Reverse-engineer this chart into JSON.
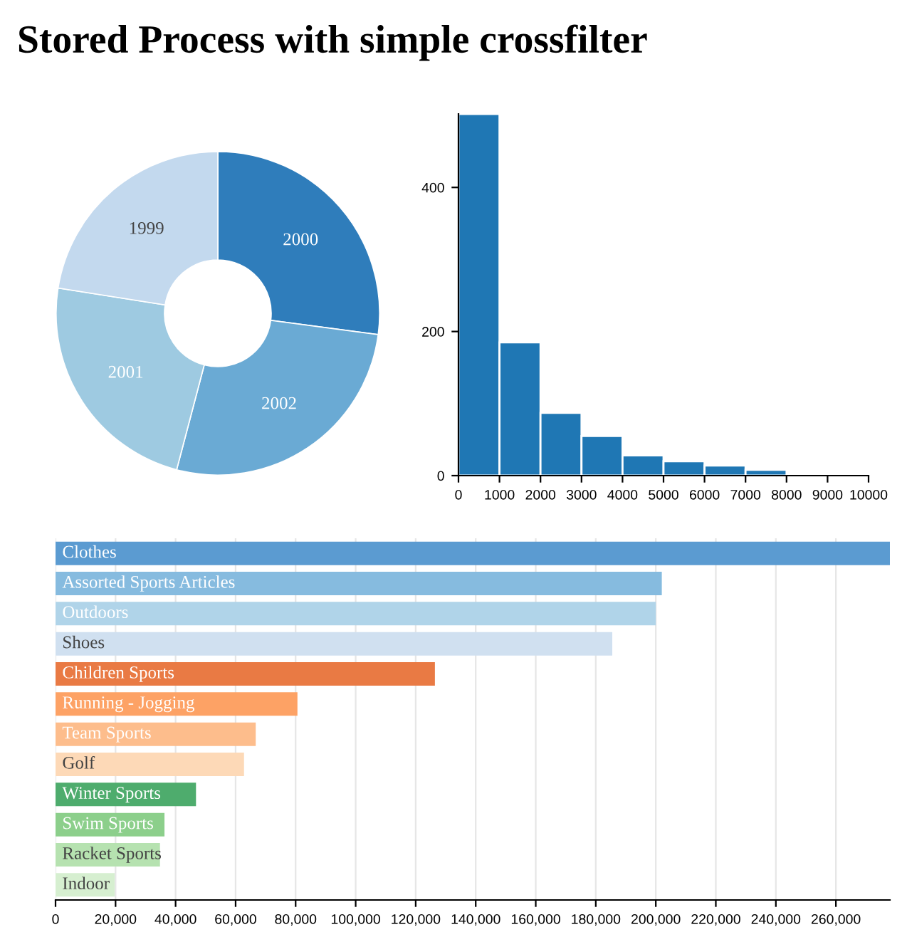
{
  "chart_data": [
    {
      "type": "donut",
      "title": "Stored Process with simple crossfilter",
      "categories": [
        "2000",
        "2002",
        "2001",
        "1999"
      ],
      "values": [
        27.1,
        27.0,
        23.4,
        22.5
      ],
      "colors": [
        "#2f7dbb",
        "#6aaad4",
        "#9ecae1",
        "#c3d9ee"
      ]
    },
    {
      "type": "histogram",
      "bins": [
        0,
        1000,
        2000,
        3000,
        4000,
        5000,
        6000,
        7000,
        8000,
        9000,
        10000
      ],
      "values": [
        502,
        185,
        87,
        55,
        28,
        20,
        14,
        8,
        0,
        0
      ],
      "color": "#1f77b4",
      "xlim": [
        0,
        10000
      ],
      "xticks": [
        0,
        1000,
        2000,
        3000,
        4000,
        5000,
        6000,
        7000,
        8000,
        9000,
        10000
      ],
      "ylim": [
        0,
        502
      ],
      "yticks": [
        0,
        200,
        400
      ],
      "grid": false
    },
    {
      "type": "bar",
      "orientation": "horizontal",
      "categories": [
        "Clothes",
        "Assorted Sports Articles",
        "Outdoors",
        "Shoes",
        "Children Sports",
        "Running - Jogging",
        "Team Sports",
        "Golf",
        "Winter Sports",
        "Swim Sports",
        "Racket Sports",
        "Indoor"
      ],
      "values": [
        278000,
        202000,
        200000,
        185500,
        126400,
        80600,
        66700,
        62800,
        46800,
        36300,
        34800,
        19700
      ],
      "colors": [
        "#5b9bd1",
        "#86bbdf",
        "#b0d4e9",
        "#d0e0f0",
        "#e97a44",
        "#fda265",
        "#fdbd8c",
        "#fdd9b7",
        "#4eac6d",
        "#8ccf8b",
        "#b6e2b0",
        "#d6efd0"
      ],
      "xlim": [
        0,
        278000
      ],
      "xticks": [
        0,
        {
          "value": 20000,
          "label": "20,000"
        },
        {
          "value": 40000,
          "label": "40,000"
        },
        {
          "value": 60000,
          "label": "60,000"
        },
        {
          "value": 80000,
          "label": "80,000"
        },
        {
          "value": 100000,
          "label": "100,000"
        },
        {
          "value": 120000,
          "label": "120,000"
        },
        {
          "value": 140000,
          "label": "140,000"
        },
        {
          "value": 160000,
          "label": "160,000"
        },
        {
          "value": 180000,
          "label": "180,000"
        },
        {
          "value": 200000,
          "label": "200,000"
        },
        {
          "value": 220000,
          "label": "220,000"
        },
        {
          "value": 240000,
          "label": "240,000"
        },
        {
          "value": 260000,
          "label": "260,000"
        }
      ],
      "grid": "x"
    }
  ]
}
